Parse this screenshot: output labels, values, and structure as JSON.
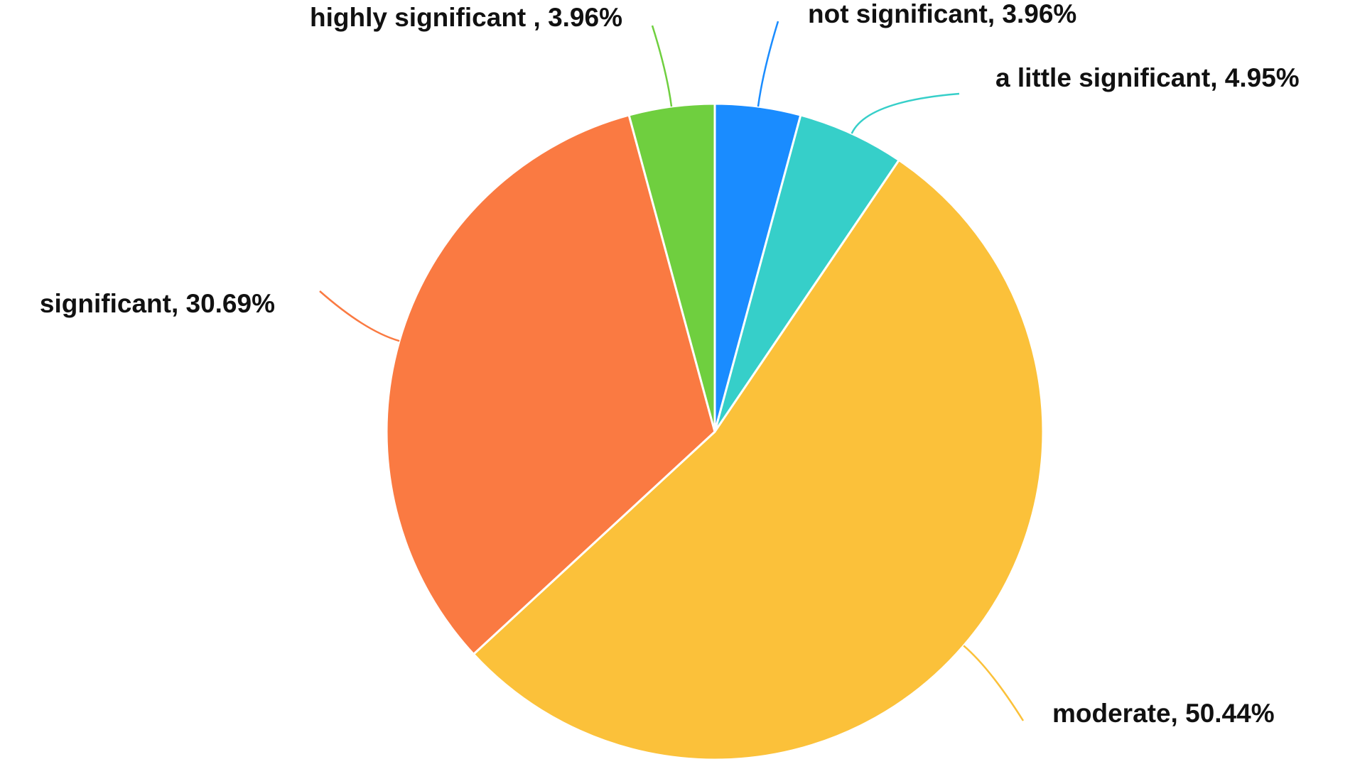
{
  "chart_data": {
    "type": "pie",
    "values": [
      3.96,
      4.95,
      50.44,
      30.69,
      3.96
    ],
    "value_labels": [
      "not significant, 3.96%",
      "a little significant, 4.95%",
      "moderate, 50.44%",
      "significant, 30.69%",
      "highly significant , 3.96%"
    ],
    "colors": [
      "#1a8cff",
      "#36cfc9",
      "#fbc13a",
      "#fa7a42",
      "#6fcf3f"
    ]
  }
}
